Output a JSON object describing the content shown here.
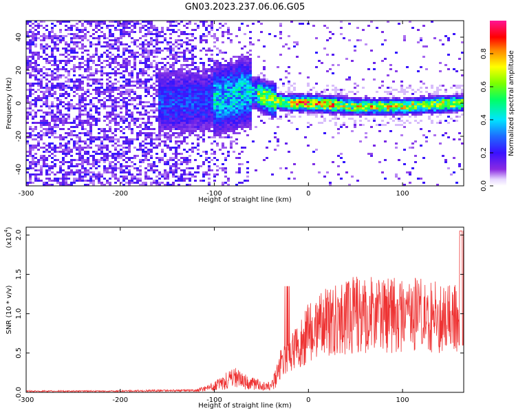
{
  "title": "GN03.2023.237.06.06.G05",
  "colors": {
    "snr_line": "#ee3333",
    "axis": "#000000",
    "background": "#ffffff"
  },
  "chart_data": [
    {
      "type": "heatmap",
      "xlabel": "Height of straight line (km)",
      "ylabel": "Frequency (Hz)",
      "xlim": [
        -300,
        165
      ],
      "ylim": [
        -50,
        50
      ],
      "xticks": [
        -300,
        -200,
        -100,
        0,
        100
      ],
      "yticks": [
        -40,
        -20,
        0,
        20,
        40
      ],
      "colorbar": {
        "label": "Normalized spectral amplitude",
        "range": [
          0,
          1
        ],
        "ticks": [
          "0.0",
          "0.2",
          "0.4",
          "0.6",
          "0.8"
        ],
        "colormap": "rainbow (purple-blue-cyan-green-yellow-red-pink)"
      },
      "ridge": [
        {
          "x": -150,
          "y": 0
        },
        {
          "x": -100,
          "y": 2
        },
        {
          "x": -70,
          "y": 6
        },
        {
          "x": -55,
          "y": 6
        },
        {
          "x": -40,
          "y": 2
        },
        {
          "x": -20,
          "y": 0
        },
        {
          "x": 0,
          "y": 0
        },
        {
          "x": 50,
          "y": -2
        },
        {
          "x": 100,
          "y": -2
        },
        {
          "x": 165,
          "y": 0
        }
      ]
    },
    {
      "type": "line",
      "xlabel": "Height of straight line (km)",
      "ylabel": "SNR (10 * v/v)",
      "scale_label": "(x10",
      "scale_exponent": "4",
      "scale_suffix": ")",
      "xlim": [
        -300,
        165
      ],
      "ylim": [
        0,
        2.1
      ],
      "xticks": [
        -300,
        -200,
        -100,
        0,
        100
      ],
      "yticks": [
        "0.0",
        "0.5",
        "1.0",
        "1.5",
        "2.0"
      ],
      "envelope": [
        {
          "x": -300,
          "y": 0.02
        },
        {
          "x": -200,
          "y": 0.02
        },
        {
          "x": -160,
          "y": 0.03
        },
        {
          "x": -120,
          "y": 0.03
        },
        {
          "x": -100,
          "y": 0.1
        },
        {
          "x": -80,
          "y": 0.25
        },
        {
          "x": -60,
          "y": 0.15
        },
        {
          "x": -40,
          "y": 0.1
        },
        {
          "x": -30,
          "y": 0.4
        },
        {
          "x": -20,
          "y": 0.55
        },
        {
          "x": -10,
          "y": 0.65
        },
        {
          "x": 0,
          "y": 0.85
        },
        {
          "x": 20,
          "y": 1.0
        },
        {
          "x": 50,
          "y": 1.1
        },
        {
          "x": 100,
          "y": 1.1
        },
        {
          "x": 165,
          "y": 1.0
        }
      ]
    }
  ]
}
